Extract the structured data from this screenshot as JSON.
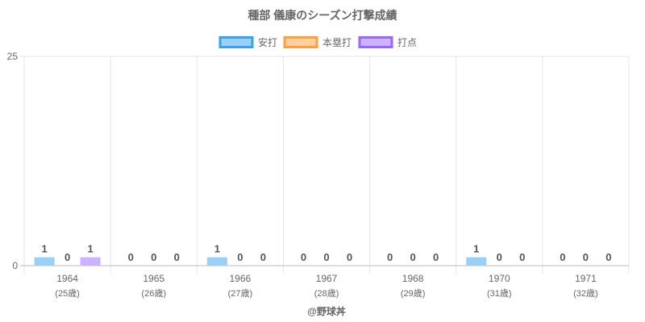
{
  "chart_data": {
    "type": "bar",
    "title": "種部 儀康のシーズン打撃成績",
    "categories": [
      "1964",
      "1965",
      "1966",
      "1967",
      "1968",
      "1970",
      "1971"
    ],
    "category_sublabels": [
      "(25歳)",
      "(26歳)",
      "(27歳)",
      "(28歳)",
      "(29歳)",
      "(31歳)",
      "(32歳)"
    ],
    "series": [
      {
        "name": "安打",
        "values": [
          1,
          0,
          1,
          0,
          0,
          1,
          0
        ],
        "fill": "#9ad0f5",
        "stroke": "#36a2eb"
      },
      {
        "name": "本塁打",
        "values": [
          0,
          0,
          0,
          0,
          0,
          0,
          0
        ],
        "fill": "#ffcf9f",
        "stroke": "#ff9f40"
      },
      {
        "name": "打点",
        "values": [
          1,
          0,
          0,
          0,
          0,
          0,
          0
        ],
        "fill": "#ccb2ff",
        "stroke": "#9966ff"
      }
    ],
    "ylim": [
      0,
      25
    ],
    "yticks": [
      0,
      25
    ],
    "grid": true,
    "legend": "top-center",
    "xlabel": "",
    "ylabel": "",
    "credit": "@野球丼"
  }
}
